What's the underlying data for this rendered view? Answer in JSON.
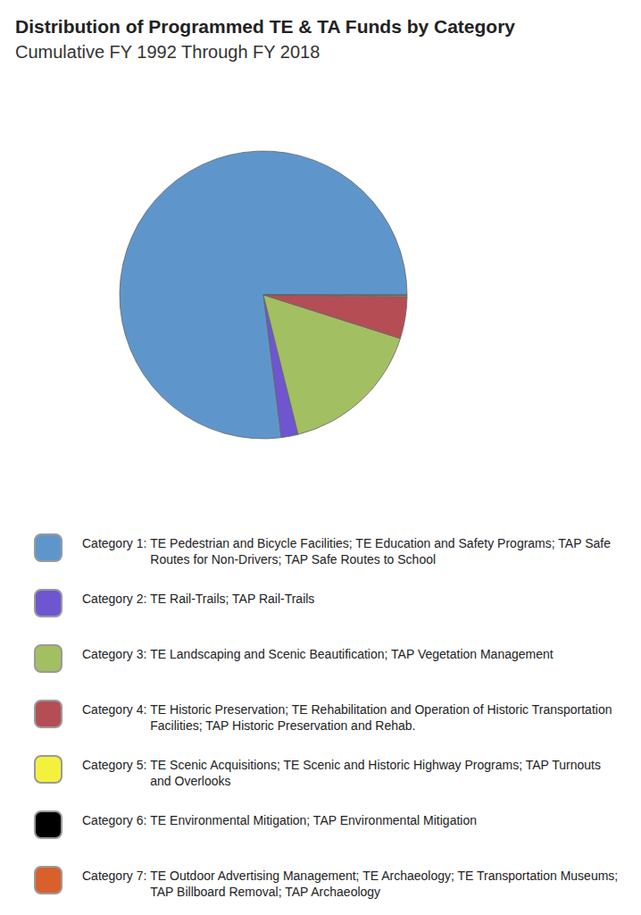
{
  "chart_data": {
    "type": "pie",
    "title": "Distribution of Programmed TE & TA Funds by Category",
    "subtitle": "Cumulative FY 1992 Through FY 2018",
    "categories": [
      "Category 1: TE Pedestrian and Bicycle Facilities; TE Education and Safety Programs; TAP Safe Routes for Non-Drivers; TAP Safe Routes to School",
      "Category 2: TE Rail-Trails; TAP Rail-Trails",
      "Category 3: TE Landscaping and Scenic Beautification; TAP Vegetation Management",
      "Category 4: TE Historic Preservation; TE Rehabilitation and Operation of Historic Transportation Facilities; TAP Historic Preservation and Rehab.",
      "Category 5: TE Scenic Acquisitions; TE Scenic and Historic Highway Programs; TAP Turnouts and Overlooks",
      "Category 6: TE Environmental Mitigation; TAP Environmental Mitigation",
      "Category 7: TE Outdoor Advertising Management; TE Archaeology; TE Transportation Museums; TAP Billboard Removal; TAP Archaeology"
    ],
    "values": [
      77.0,
      1.9,
      16.2,
      4.7,
      0.1,
      0.05,
      0.05
    ],
    "colors": [
      "#5e96cc",
      "#6f55d0",
      "#a2bf62",
      "#b54d55",
      "#f2f23c",
      "#000000",
      "#d9602b"
    ],
    "legend": "bottom",
    "data_labels": false
  }
}
